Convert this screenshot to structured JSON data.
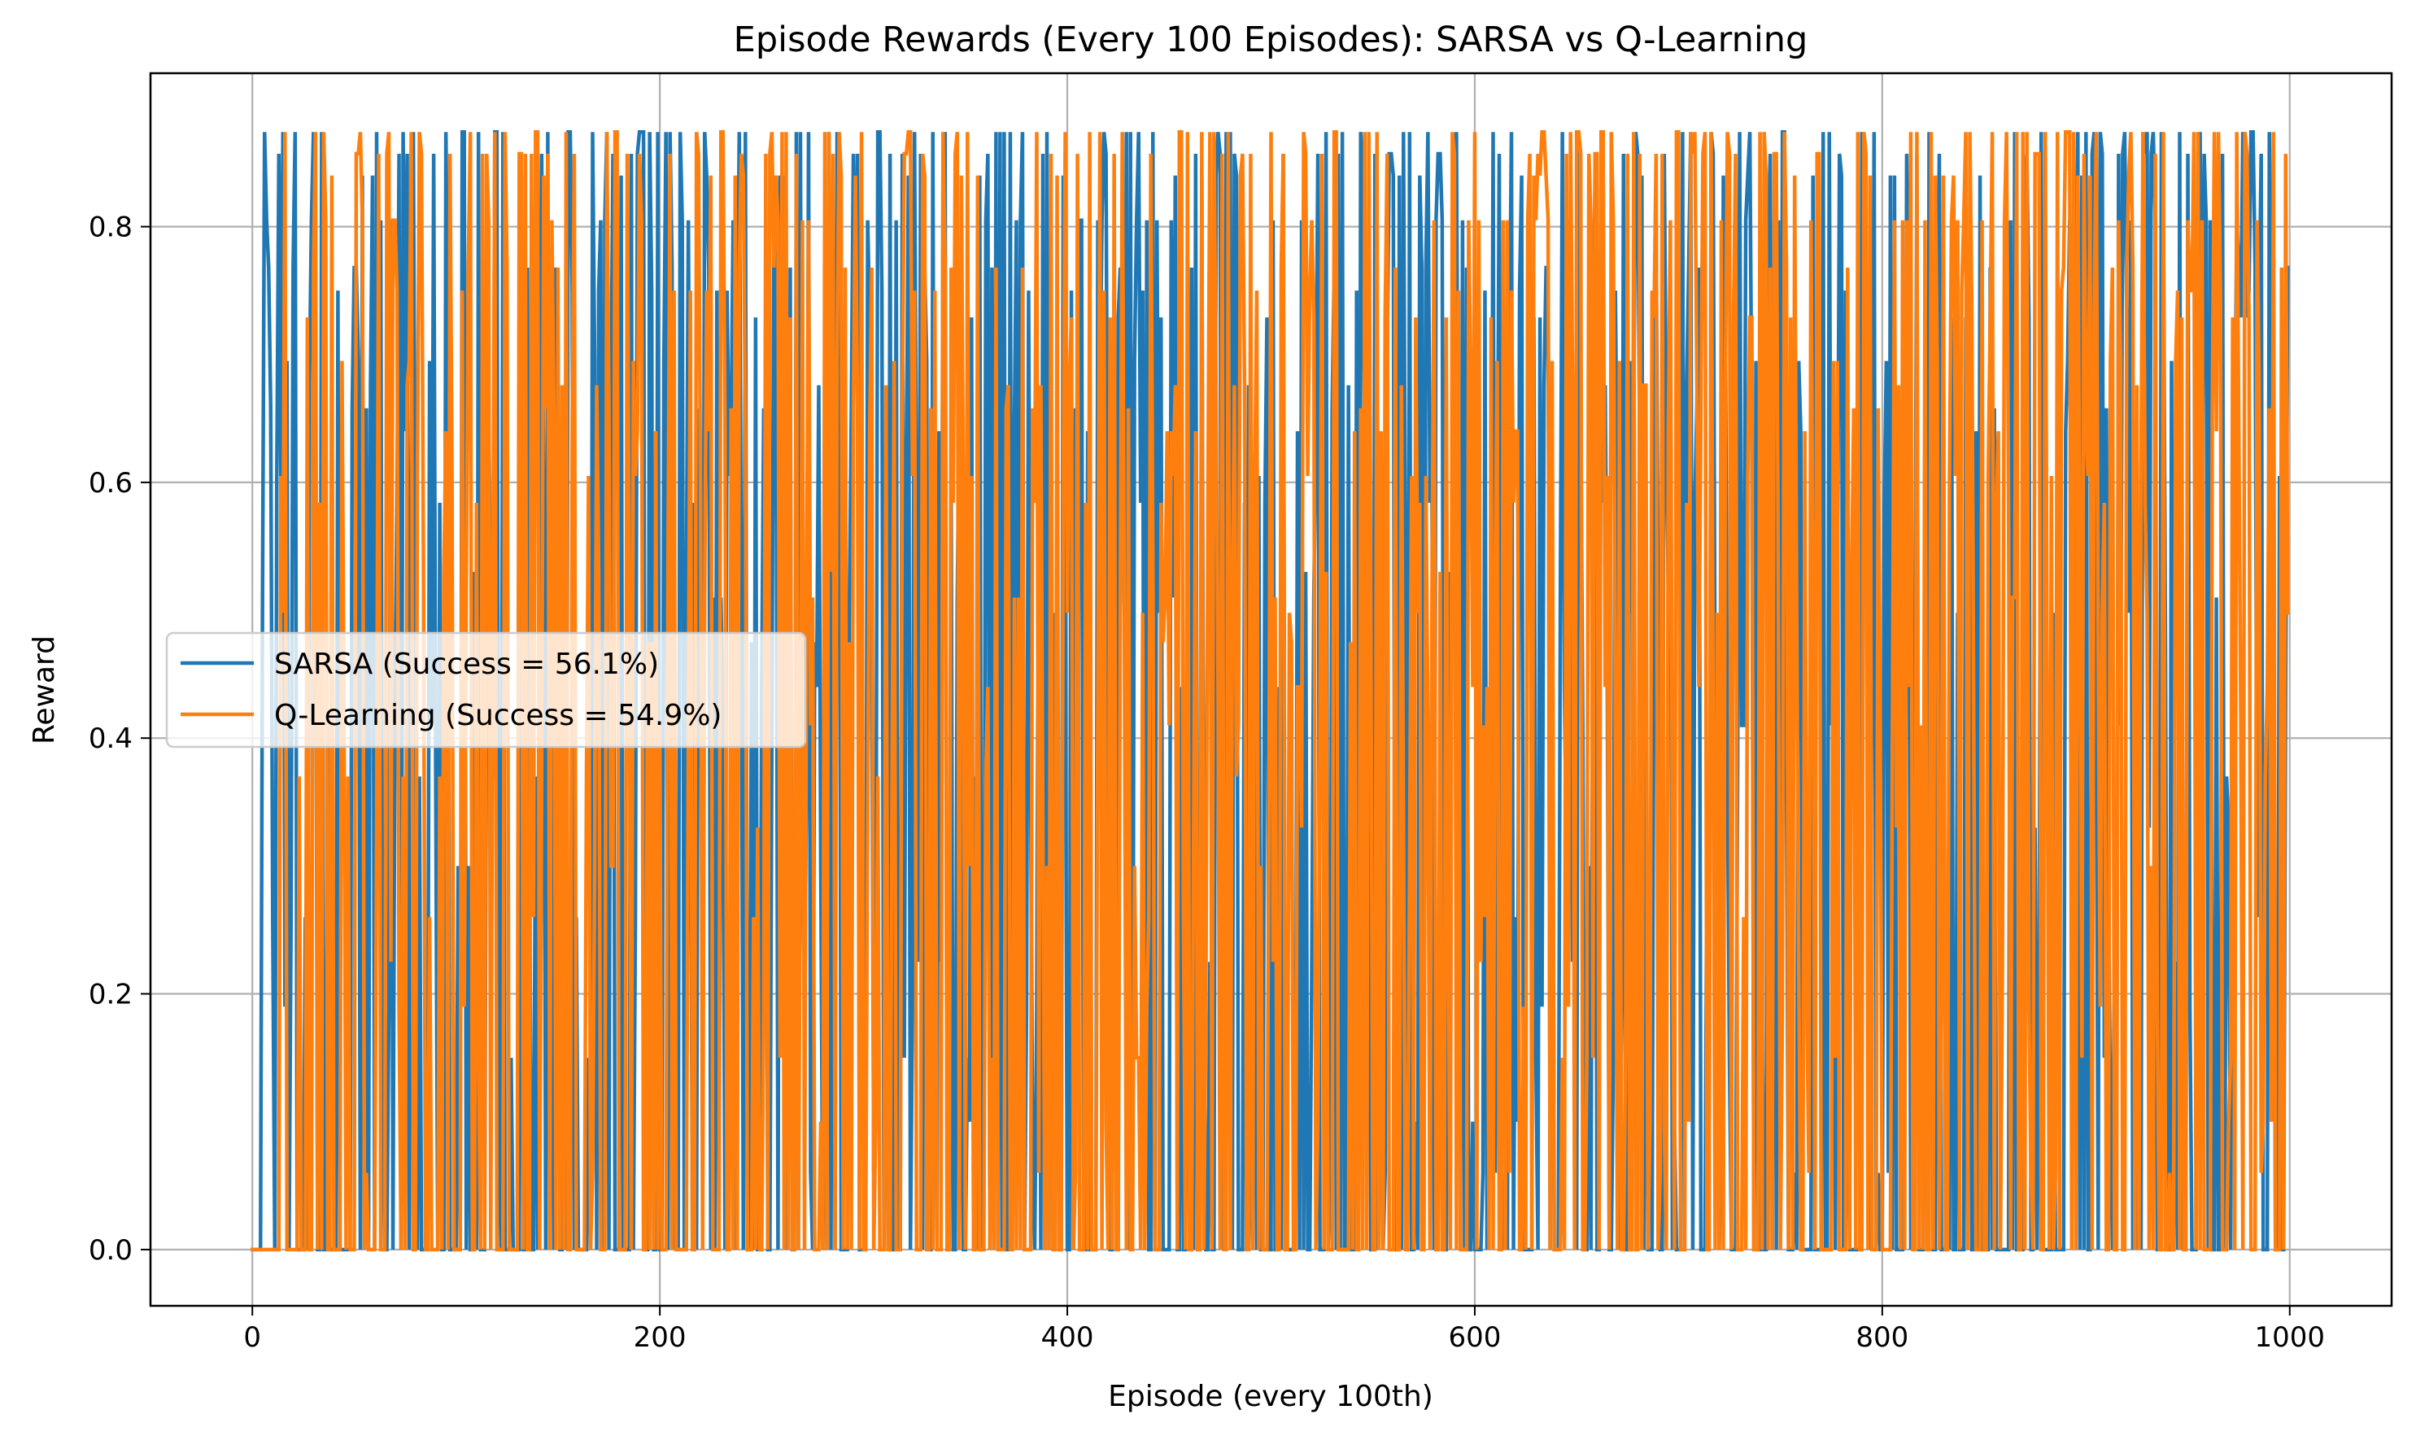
{
  "chart_data": {
    "type": "line",
    "title": "Episode Rewards (Every 100 Episodes): SARSA vs Q-Learning",
    "xlabel": "Episode (every 100th)",
    "ylabel": "Reward",
    "xlim": [
      -50,
      1050
    ],
    "ylim": [
      -0.044,
      0.92
    ],
    "xticks": [
      0,
      200,
      400,
      600,
      800,
      1000
    ],
    "yticks": [
      0.0,
      0.2,
      0.4,
      0.6,
      0.8
    ],
    "xtick_labels": [
      "0",
      "200",
      "400",
      "600",
      "800",
      "1000"
    ],
    "ytick_labels": [
      "0.0",
      "0.2",
      "0.4",
      "0.6",
      "0.8"
    ],
    "grid": true,
    "legend": {
      "placement": "center-left"
    },
    "reward_levels": [
      0.874,
      0.857,
      0.84,
      0.805,
      0.768,
      0.75,
      0.729,
      0.695,
      0.676,
      0.658,
      0.64,
      0.605,
      0.584,
      0.53,
      0.51,
      0.498,
      0.475,
      0.44,
      0.41,
      0.37,
      0.33,
      0.3,
      0.26,
      0.225,
      0.19,
      0.15,
      0.1,
      0.06
    ],
    "series": [
      {
        "name": "SARSA (Success = 56.1%)",
        "color": "#1f77b4",
        "x_start": 0,
        "x_step": 1,
        "count": 1000,
        "first_values": [
          0,
          0,
          0,
          0,
          0,
          0.515,
          0.874,
          0.805,
          0.768,
          0.658
        ],
        "success_rate": 0.561,
        "last_value": 0.768
      },
      {
        "name": "Q-Learning (Success = 54.9%)",
        "color": "#ff7f0e",
        "x_start": 0,
        "x_step": 1,
        "count": 1000,
        "first_values": [
          0,
          0,
          0,
          0,
          0,
          0,
          0,
          0,
          0,
          0,
          0,
          0,
          0,
          0,
          0.605
        ],
        "success_rate": 0.549,
        "last_value": 0.498
      }
    ]
  }
}
